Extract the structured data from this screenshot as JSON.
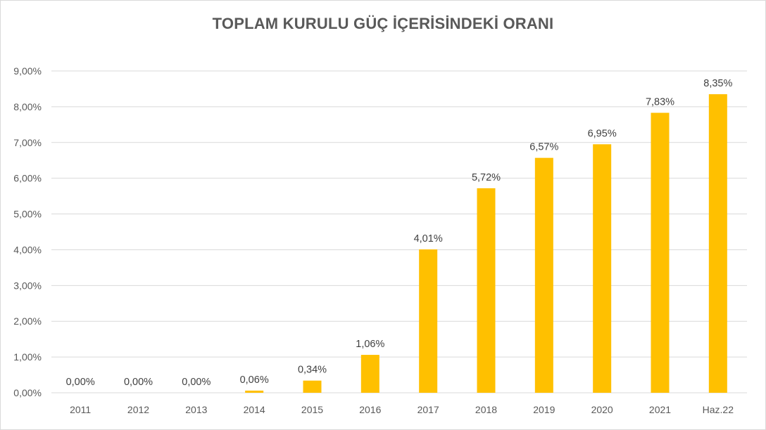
{
  "chart_data": {
    "type": "bar",
    "title": "TOPLAM KURULU GÜÇ İÇERİSİNDEKİ ORANI",
    "xlabel": "",
    "ylabel": "",
    "categories": [
      "2011",
      "2012",
      "2013",
      "2014",
      "2015",
      "2016",
      "2017",
      "2018",
      "2019",
      "2020",
      "2021",
      "Haz.22"
    ],
    "values": [
      0.0,
      0.0,
      0.0,
      0.06,
      0.34,
      1.06,
      4.01,
      5.72,
      6.57,
      6.95,
      7.83,
      8.35
    ],
    "data_labels": [
      "0,00%",
      "0,00%",
      "0,00%",
      "0,06%",
      "0,34%",
      "1,06%",
      "4,01%",
      "5,72%",
      "6,57%",
      "6,95%",
      "7,83%",
      "8,35%"
    ],
    "ylim": [
      0,
      9
    ],
    "yticks": [
      0,
      1,
      2,
      3,
      4,
      5,
      6,
      7,
      8,
      9
    ],
    "ytick_labels": [
      "0,00%",
      "1,00%",
      "2,00%",
      "3,00%",
      "4,00%",
      "5,00%",
      "6,00%",
      "7,00%",
      "8,00%",
      "9,00%"
    ],
    "grid": true,
    "legend": "none",
    "bar_color": "#FFC000",
    "grid_color": "#D9D9D9"
  }
}
